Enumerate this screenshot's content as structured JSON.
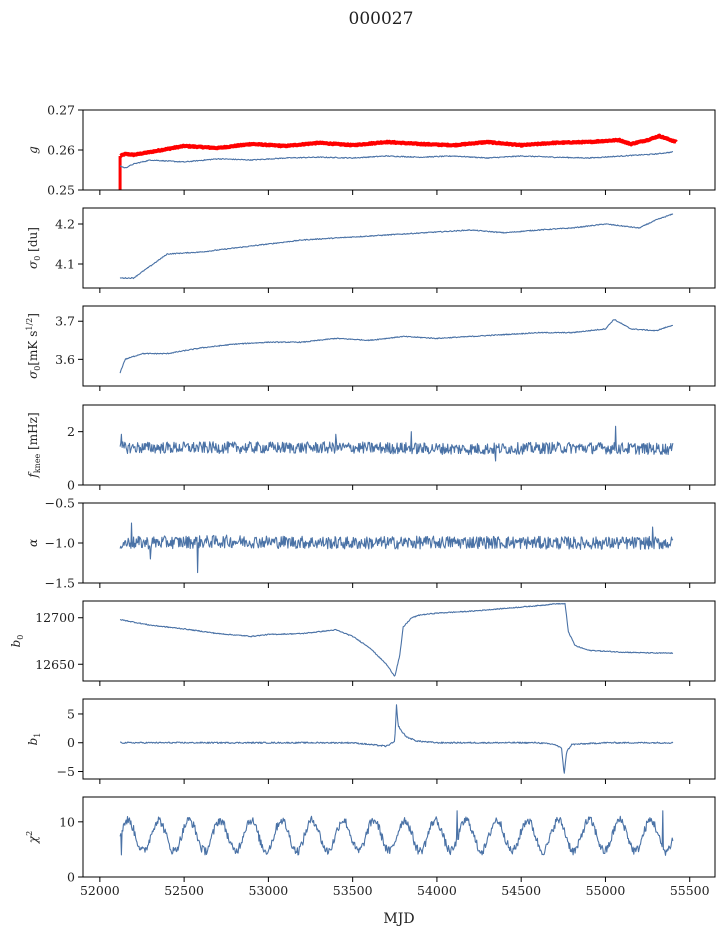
{
  "figure": {
    "title": "000027",
    "xlabel": "MJD"
  },
  "chart_data": [
    {
      "type": "line",
      "ylabel": "g",
      "ylim": [
        0.25,
        0.27
      ],
      "yticks": [
        0.25,
        0.26,
        0.27
      ],
      "xlim": [
        51900,
        55650
      ],
      "series": [
        {
          "color": "#ff0000",
          "band": true,
          "x": [
            52120,
            52150,
            52200,
            52300,
            52500,
            52700,
            52900,
            53100,
            53300,
            53500,
            53700,
            53900,
            54100,
            54300,
            54500,
            54700,
            54900,
            55080,
            55150,
            55250,
            55320,
            55420
          ],
          "values": [
            0.2585,
            0.259,
            0.2588,
            0.2595,
            0.261,
            0.2605,
            0.2615,
            0.261,
            0.2618,
            0.2612,
            0.262,
            0.2615,
            0.2612,
            0.262,
            0.2612,
            0.2618,
            0.262,
            0.2625,
            0.2615,
            0.2625,
            0.2635,
            0.262
          ]
        },
        {
          "color": "#4a72a6",
          "x": [
            52120,
            52150,
            52200,
            52300,
            52500,
            52700,
            52900,
            53100,
            53300,
            53500,
            53700,
            53900,
            54100,
            54300,
            54500,
            54700,
            54900,
            55100,
            55300,
            55400
          ],
          "values": [
            0.256,
            0.2555,
            0.2565,
            0.2575,
            0.257,
            0.2578,
            0.2575,
            0.258,
            0.2582,
            0.258,
            0.2585,
            0.2582,
            0.2585,
            0.258,
            0.2585,
            0.2582,
            0.258,
            0.2585,
            0.259,
            0.2595
          ]
        }
      ]
    },
    {
      "type": "line",
      "ylabel": "σ0 [du]",
      "ylim": [
        4.04,
        4.24
      ],
      "yticks": [
        4.1,
        4.2
      ],
      "xlim": [
        51900,
        55650
      ],
      "series": [
        {
          "color": "#4a72a6",
          "x": [
            52120,
            52200,
            52300,
            52400,
            52600,
            52800,
            53000,
            53200,
            53400,
            53600,
            53800,
            54000,
            54200,
            54400,
            54600,
            54800,
            55000,
            55100,
            55200,
            55300,
            55400
          ],
          "values": [
            4.065,
            4.065,
            4.095,
            4.125,
            4.13,
            4.14,
            4.15,
            4.16,
            4.165,
            4.17,
            4.175,
            4.18,
            4.185,
            4.178,
            4.185,
            4.19,
            4.2,
            4.195,
            4.19,
            4.21,
            4.225
          ]
        }
      ]
    },
    {
      "type": "line",
      "ylabel": "σ0[mK s^1/2]",
      "ylim": [
        3.53,
        3.74
      ],
      "yticks": [
        3.6,
        3.7
      ],
      "xlim": [
        51900,
        55650
      ],
      "series": [
        {
          "color": "#4a72a6",
          "x": [
            52120,
            52150,
            52250,
            52400,
            52600,
            52800,
            53000,
            53200,
            53400,
            53600,
            53800,
            54000,
            54200,
            54400,
            54600,
            54800,
            55000,
            55050,
            55150,
            55300,
            55400
          ],
          "values": [
            3.565,
            3.6,
            3.615,
            3.615,
            3.63,
            3.64,
            3.645,
            3.645,
            3.655,
            3.65,
            3.66,
            3.655,
            3.66,
            3.665,
            3.67,
            3.67,
            3.68,
            3.705,
            3.68,
            3.675,
            3.69
          ]
        }
      ]
    },
    {
      "type": "line",
      "ylabel": "fknee [mHz]",
      "ylim": [
        0,
        3
      ],
      "yticks": [
        0,
        2
      ],
      "xlim": [
        51900,
        55650
      ],
      "series": [
        {
          "color": "#4a72a6",
          "noise": 0.22,
          "x": [
            52120,
            52800,
            53500,
            54200,
            54800,
            55400
          ],
          "values": [
            1.4,
            1.4,
            1.4,
            1.35,
            1.4,
            1.35
          ],
          "spikes": [
            [
              52130,
              1.9
            ],
            [
              53400,
              1.9
            ],
            [
              53850,
              2.0
            ],
            [
              55060,
              2.2
            ],
            [
              54350,
              0.9
            ]
          ]
        }
      ]
    },
    {
      "type": "line",
      "ylabel": "α",
      "ylim": [
        -1.5,
        -0.5
      ],
      "yticks": [
        -1.5,
        -1.0,
        -0.5
      ],
      "xlim": [
        51900,
        55650
      ],
      "series": [
        {
          "color": "#4a72a6",
          "noise": 0.08,
          "x": [
            52120,
            52800,
            53500,
            54200,
            54800,
            55400
          ],
          "values": [
            -1.0,
            -0.98,
            -1.0,
            -0.99,
            -1.0,
            -1.0
          ],
          "spikes": [
            [
              52190,
              -0.75
            ],
            [
              52580,
              -1.37
            ],
            [
              55280,
              -0.8
            ],
            [
              52300,
              -1.2
            ]
          ]
        }
      ]
    },
    {
      "type": "line",
      "ylabel": "b0",
      "ylim": [
        12632,
        12718
      ],
      "yticks": [
        12650,
        12700
      ],
      "xlim": [
        51900,
        55650
      ],
      "series": [
        {
          "color": "#4a72a6",
          "x": [
            52120,
            52300,
            52500,
            52700,
            52900,
            53000,
            53200,
            53400,
            53500,
            53600,
            53700,
            53750,
            53780,
            53800,
            53850,
            53900,
            54000,
            54200,
            54400,
            54600,
            54700,
            54760,
            54780,
            54820,
            54900,
            55100,
            55300,
            55400
          ],
          "values": [
            12698,
            12692,
            12688,
            12683,
            12680,
            12682,
            12683,
            12687,
            12680,
            12668,
            12650,
            12637,
            12660,
            12690,
            12700,
            12703,
            12705,
            12707,
            12710,
            12713,
            12715,
            12715,
            12685,
            12670,
            12665,
            12663,
            12662,
            12662
          ]
        }
      ]
    },
    {
      "type": "line",
      "ylabel": "b1",
      "ylim": [
        -6.3,
        7.6
      ],
      "yticks": [
        -5,
        0,
        5
      ],
      "xlim": [
        51900,
        55650
      ],
      "series": [
        {
          "color": "#4a72a6",
          "noise": 0.12,
          "x": [
            52120,
            53500,
            53600,
            53700,
            53750,
            53760,
            53770,
            53790,
            53820,
            53880,
            54000,
            54600,
            54700,
            54740,
            54755,
            54770,
            54800,
            55000,
            55400
          ],
          "values": [
            0.0,
            0.0,
            -0.3,
            -0.6,
            0.2,
            6.5,
            3.0,
            2.0,
            1.0,
            0.3,
            0.0,
            0.0,
            -0.3,
            -1.0,
            -5.5,
            -1.5,
            -0.3,
            0.0,
            0.0
          ]
        }
      ]
    },
    {
      "type": "line",
      "ylabel": "χ2",
      "ylim": [
        0,
        14.5
      ],
      "yticks": [
        0,
        10
      ],
      "xlim": [
        51900,
        55650
      ],
      "series": [
        {
          "color": "#4a72a6",
          "noise": 0.8,
          "periodic": {
            "center": 7.5,
            "amplitude": 2.8,
            "period": 182.5
          },
          "x": [
            52120,
            55400
          ],
          "values": [
            7.5,
            7.5
          ],
          "spikes": [
            [
              52130,
              4.0
            ],
            [
              54120,
              12.0
            ],
            [
              55340,
              12.0
            ]
          ]
        }
      ]
    }
  ],
  "xticks": [
    52000,
    52500,
    53000,
    53500,
    54000,
    54500,
    55000,
    55500
  ]
}
